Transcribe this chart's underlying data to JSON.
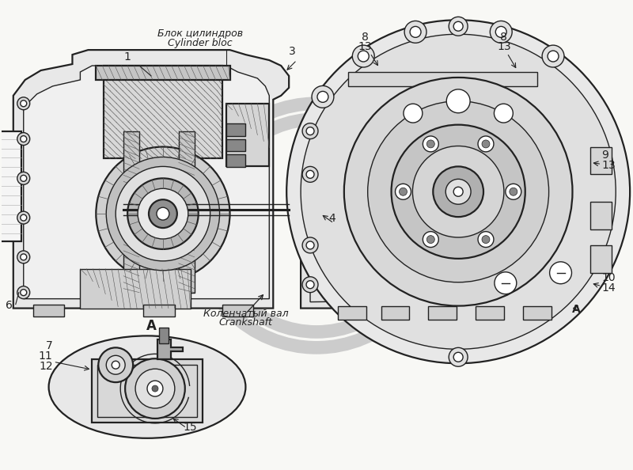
{
  "bg_color": "#f8f8f5",
  "line_color": "#222222",
  "hatch_color": "#555555",
  "watermark_color": "#cccccc",
  "fig_width": 8.0,
  "fig_height": 5.94,
  "dpi": 100,
  "annotations": {
    "blok_cyl_ru": "Блок цилиндров",
    "blok_cyl_en": "Cylinder bloc",
    "kolen_val_ru": "Коленчатый вал",
    "kolen_val_en": "Crankshaft"
  }
}
